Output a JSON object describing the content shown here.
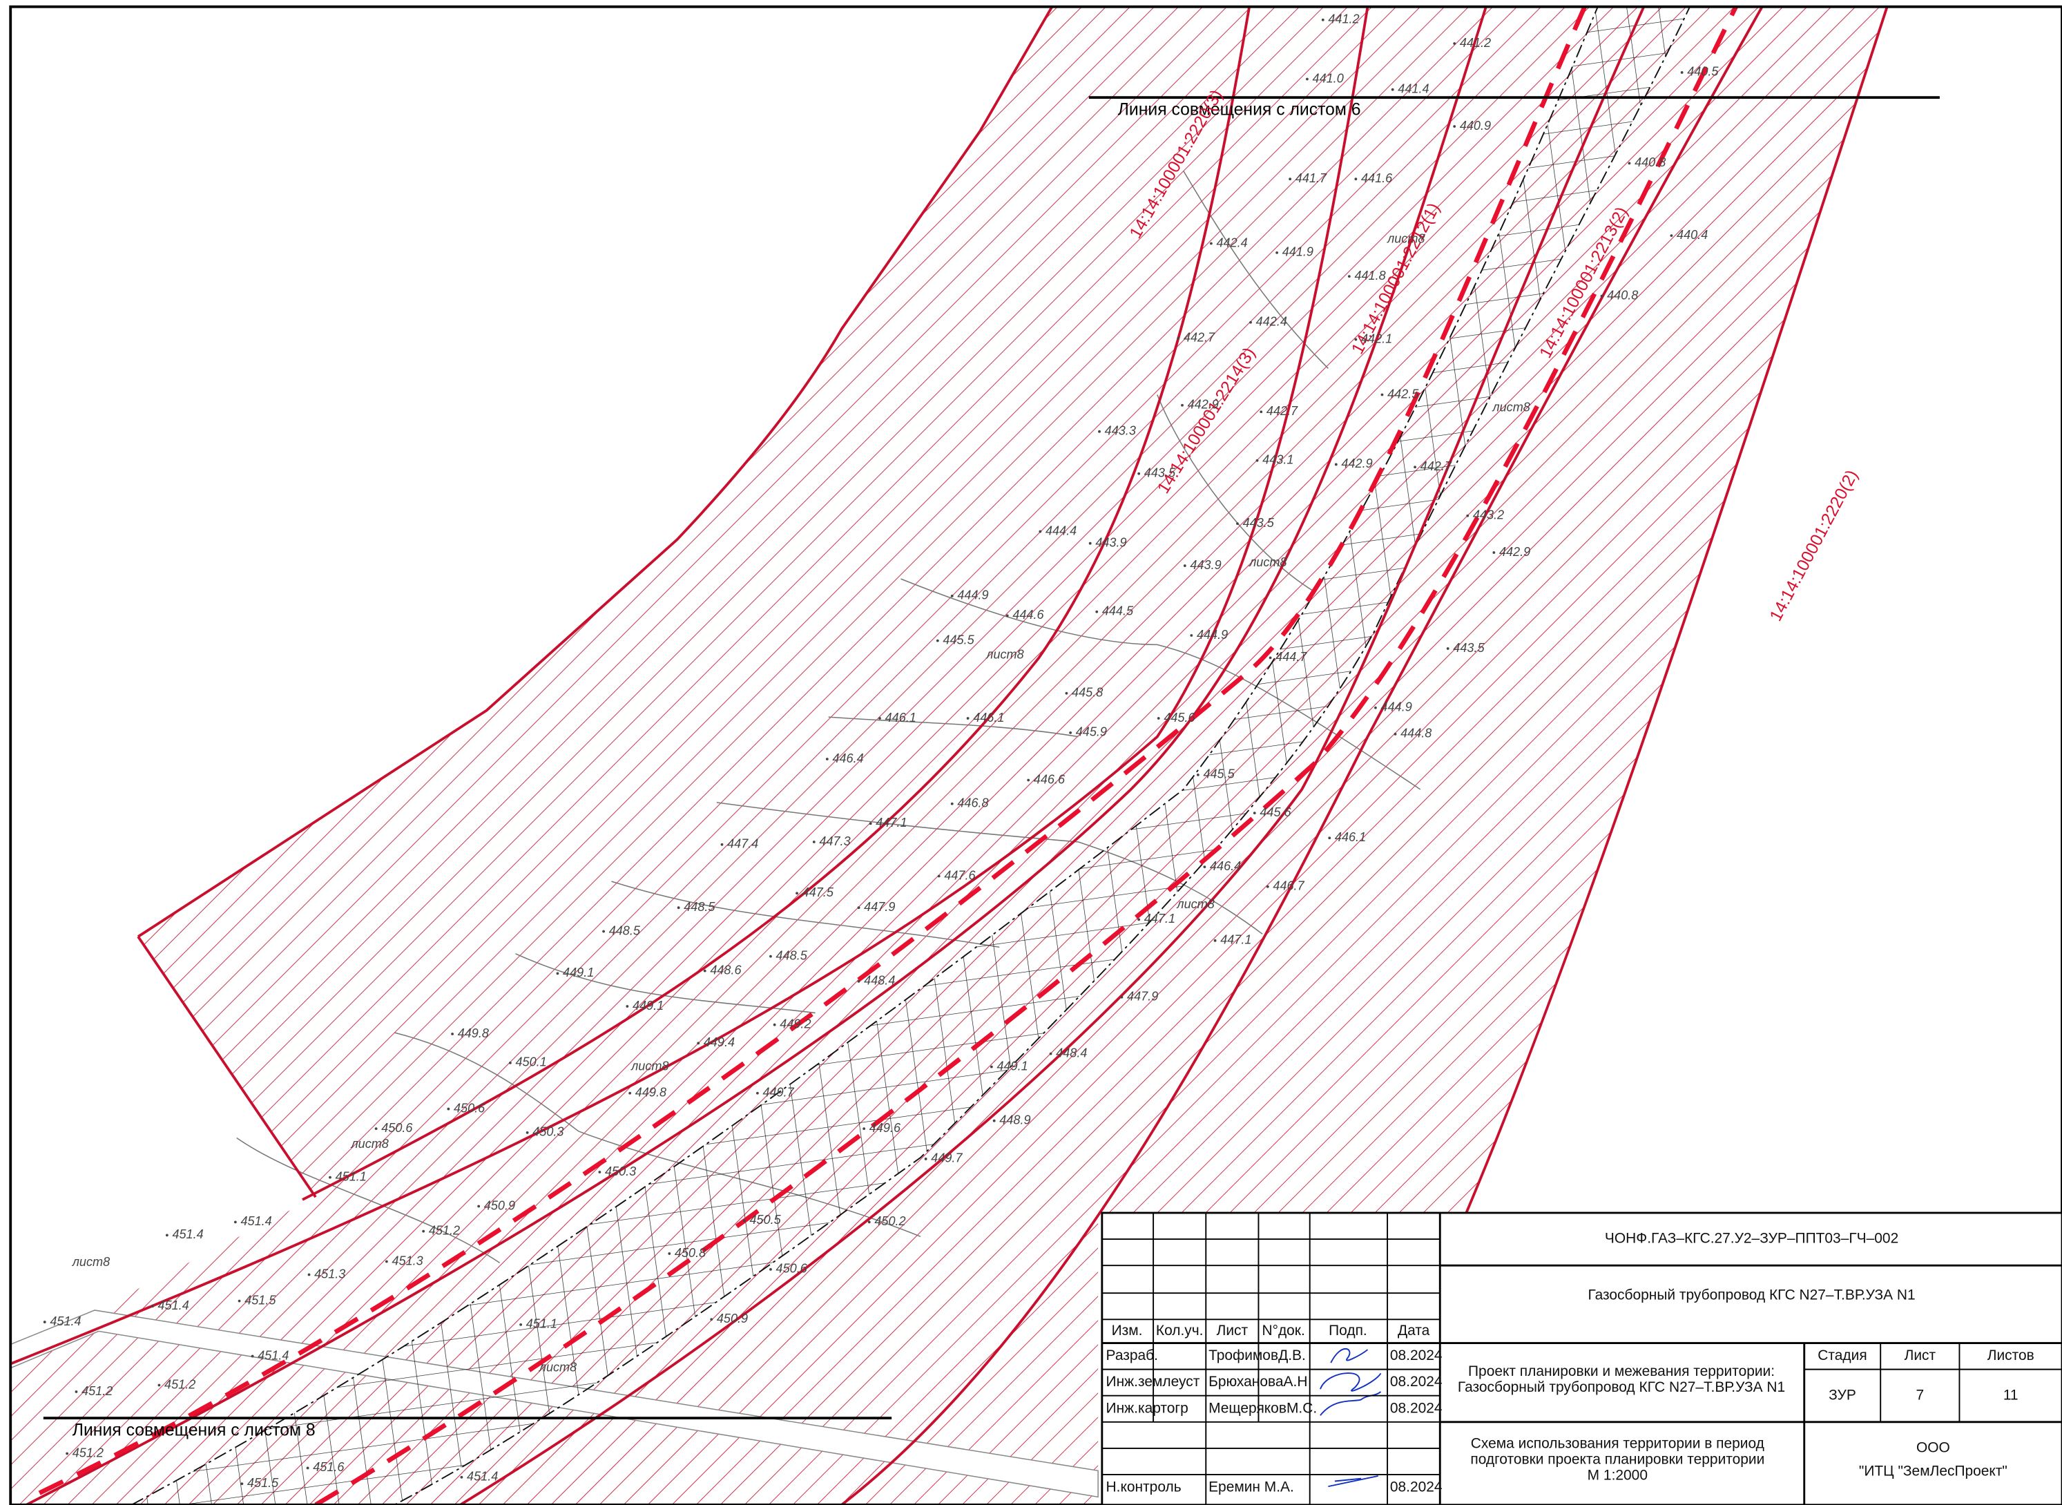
{
  "drawing": {
    "match_lines": [
      "Линия совмещения с листом 6",
      "Линия совмещения с листом 8"
    ],
    "parcels": [
      "14:14:100001:2220(3)",
      "14:14:100001:2212(1)",
      "14:14:100001:2214(3)",
      "14:14:100001:2213(2)",
      "14:14:100001:2220(2)"
    ],
    "elevations": [
      "441.2",
      "441.0",
      "441.4",
      "441.2",
      "440.9",
      "441.7",
      "441.6",
      "442.4",
      "441.9",
      "441.8",
      "442.7",
      "442.4",
      "442.1",
      "442.9",
      "442.7",
      "442.5",
      "443.3",
      "443.5",
      "443.1",
      "442.9",
      "442.7",
      "443.5",
      "443.2",
      "442.9",
      "444.4",
      "443.9",
      "443.9",
      "444.9",
      "444.6",
      "444.5",
      "444.9",
      "445.5",
      "444.7",
      "443.5",
      "445.8",
      "446.1",
      "446.1",
      "445.9",
      "445.6",
      "444.9",
      "444.8",
      "446.4",
      "446.6",
      "445.5",
      "445.6",
      "446.8",
      "447.1",
      "447.3",
      "447.4",
      "446.1",
      "446.4",
      "446.7",
      "447.6",
      "447.5",
      "447.9",
      "448.5",
      "448.5",
      "447.1",
      "447.1",
      "448.6",
      "448.5",
      "449.1",
      "449.1",
      "448.4",
      "447.9",
      "449.2",
      "449.4",
      "449.8",
      "450.1",
      "449.8",
      "448.4",
      "449.1",
      "449.7",
      "449.6",
      "448.9",
      "450.6",
      "450.3",
      "450.6",
      "449.7",
      "450.3",
      "451.1",
      "450.9",
      "451.2",
      "450.8",
      "450.5",
      "450.2",
      "451.4",
      "451.4",
      "451.3",
      "451.3",
      "451.5",
      "451.4",
      "451.4",
      "451.4",
      "451.2",
      "451.2",
      "451.5",
      "451.6",
      "451.2",
      "450.9",
      "450.6",
      "451.1",
      "451.4",
      "440.5",
      "440.8",
      "440.4",
      "440.8"
    ],
    "tree_marks": [
      "лист8",
      "лист8",
      "лист8",
      "лист8",
      "лист8",
      "лист8",
      "лист8",
      "лист8",
      "лист8"
    ]
  },
  "title_block": {
    "code": "ЧОНФ.ГАЗ–КГС.27.У2–ЗУР–ППТ03–ГЧ–002",
    "object": "Газосборный трубопровод КГС N27–Т.ВР.УЗА N1",
    "headers": [
      "Изм.",
      "Кол.уч.",
      "Лист",
      "N°док.",
      "Подп.",
      "Дата"
    ],
    "signers": [
      {
        "role": "Разраб.",
        "name": "ТрофимовД.В.",
        "date": "08.2024"
      },
      {
        "role": "Инж.землеуст",
        "name": "БрюхановаА.Н",
        "date": "08.2024"
      },
      {
        "role": "Инж.картогр",
        "name": "МещеряковМ.С.",
        "date": "08.2024"
      },
      {
        "role": "Н.контроль",
        "name": "Еремин М.А.",
        "date": "08.2024"
      }
    ],
    "project": [
      "Проект планировки и межевания территории:",
      "Газосборный трубопровод КГС N27–Т.ВР.УЗА N1"
    ],
    "stage_headers": [
      "Стадия",
      "Лист",
      "Листов"
    ],
    "stage_values": [
      "ЗУР",
      "7",
      "11"
    ],
    "drawing_title": [
      "Схема использования территории в период",
      "подготовки проекта планировки территории",
      "М 1:2000"
    ],
    "company": [
      "ООО",
      "\"ИТЦ \"ЗемЛесПроект\""
    ]
  }
}
